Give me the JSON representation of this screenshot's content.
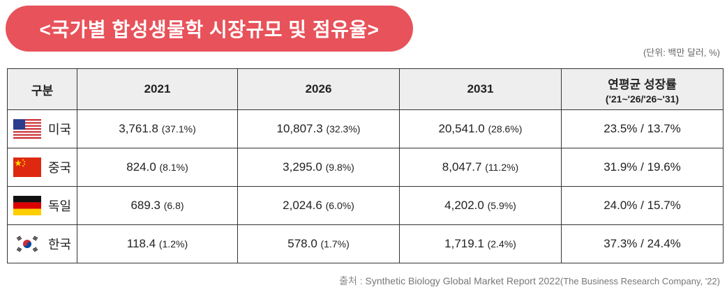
{
  "title": "<국가별 합성생물학 시장규모 및 점유율>",
  "unit_note": "(단위: 백만 달러, %)",
  "table": {
    "headers": {
      "country": "구분",
      "y2021": "2021",
      "y2026": "2026",
      "y2031": "2031",
      "cagr_line1": "연평균 성장률",
      "cagr_line2": "('21~'26/'26~'31)"
    },
    "rows": [
      {
        "country": "미국",
        "flag_icon": "us-flag-icon",
        "v2021": "3,761.8",
        "s2021": "(37.1%)",
        "v2026": "10,807.3",
        "s2026": "(32.3%)",
        "v2031": "20,541.0",
        "s2031": "(28.6%)",
        "cagr": "23.5% / 13.7%"
      },
      {
        "country": "중국",
        "flag_icon": "china-flag-icon",
        "v2021": "824.0",
        "s2021": "(8.1%)",
        "v2026": "3,295.0",
        "s2026": "(9.8%)",
        "v2031": "8,047.7",
        "s2031": "(11.2%)",
        "cagr": "31.9% / 19.6%"
      },
      {
        "country": "독일",
        "flag_icon": "germany-flag-icon",
        "v2021": "689.3",
        "s2021": "(6.8)",
        "v2026": "2,024.6",
        "s2026": "(6.0%)",
        "v2031": "4,202.0",
        "s2031": "(5.9%)",
        "cagr": "24.0% / 15.7%"
      },
      {
        "country": "한국",
        "flag_icon": "korea-flag-icon",
        "v2021": "118.4",
        "s2021": "(1.2%)",
        "v2026": "578.0",
        "s2026": "(1.7%)",
        "v2031": "1,719.1",
        "s2031": "(2.4%)",
        "cagr": "37.3% / 24.4%"
      }
    ]
  },
  "source": {
    "label": "출처 :",
    "text": "Synthetic Biology Global Market Report 2022",
    "detail": "(The Business Research Company, '22)"
  },
  "colors": {
    "title_bg": "#e8525a",
    "header_bg": "#eeeeee"
  }
}
